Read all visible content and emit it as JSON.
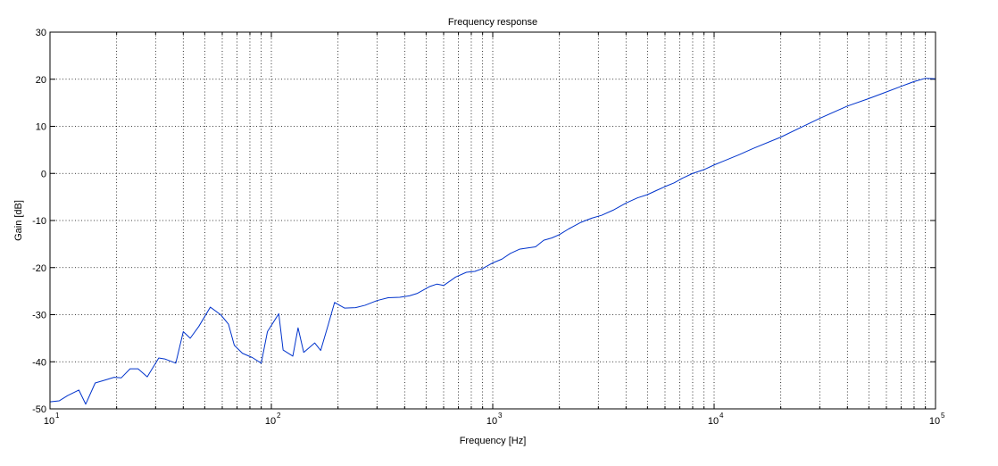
{
  "chart_data": {
    "type": "line",
    "title": "Frequency response",
    "xlabel": "Frequency [Hz]",
    "ylabel": "Gain [dB]",
    "xscale": "log",
    "xlim": [
      10,
      100000
    ],
    "ylim": [
      -50,
      30
    ],
    "grid": true,
    "grid_style": "dotted",
    "line_color": "#0033cc",
    "x_ticks": [
      {
        "value": 10,
        "base": "10",
        "exp": "1"
      },
      {
        "value": 100,
        "base": "10",
        "exp": "2"
      },
      {
        "value": 1000,
        "base": "10",
        "exp": "3"
      },
      {
        "value": 10000,
        "base": "10",
        "exp": "4"
      },
      {
        "value": 100000,
        "base": "10",
        "exp": "5"
      }
    ],
    "y_ticks": [
      30,
      20,
      10,
      0,
      -10,
      -20,
      -30,
      -40,
      -50
    ],
    "y_tick_labels": [
      "30",
      "20",
      "10",
      "0",
      "-10",
      "-20",
      "-30",
      "-40",
      "-50"
    ],
    "series": [
      {
        "x": [
          10,
          11,
          12,
          13.5,
          14.5,
          16,
          18,
          19.5,
          21,
          23,
          25,
          27.5,
          31,
          33,
          37,
          40,
          43,
          47,
          53,
          59,
          64,
          68,
          74,
          82,
          90,
          96,
          108,
          113,
          125,
          132,
          140,
          157,
          167,
          180,
          193,
          214,
          240,
          265,
          300,
          337,
          380,
          420,
          455,
          520,
          560,
          600,
          680,
          760,
          830,
          900,
          1000,
          1100,
          1200,
          1320,
          1450,
          1560,
          1700,
          1850,
          2000,
          2200,
          2500,
          2800,
          3100,
          3500,
          4000,
          4500,
          5000,
          5500,
          6000,
          6600,
          7200,
          8000,
          9000,
          10000,
          11000,
          13000,
          15000,
          20000,
          30000,
          40000,
          50000,
          60000,
          70000,
          80000,
          90000,
          100000
        ],
        "y": [
          -48.5,
          -48.3,
          -47.2,
          -46.0,
          -49.0,
          -44.5,
          -43.8,
          -43.3,
          -43.4,
          -41.5,
          -41.5,
          -43.2,
          -39.2,
          -39.4,
          -40.3,
          -33.6,
          -35.0,
          -32.5,
          -28.4,
          -30.0,
          -32.0,
          -36.5,
          -38.2,
          -39.1,
          -40.3,
          -33.6,
          -29.8,
          -37.5,
          -38.8,
          -32.8,
          -38.0,
          -36.0,
          -37.6,
          -32.4,
          -27.4,
          -28.6,
          -28.5,
          -28.0,
          -27.0,
          -26.4,
          -26.3,
          -26.0,
          -25.5,
          -24.0,
          -23.5,
          -23.8,
          -22.0,
          -21.0,
          -20.8,
          -20.2,
          -19.0,
          -18.2,
          -17.0,
          -16.1,
          -15.8,
          -15.6,
          -14.2,
          -13.7,
          -13.0,
          -11.8,
          -10.4,
          -9.5,
          -8.9,
          -7.8,
          -6.3,
          -5.2,
          -4.5,
          -3.6,
          -2.8,
          -2.0,
          -1.0,
          0.0,
          0.8,
          1.8,
          2.6,
          4.0,
          5.3,
          7.7,
          11.7,
          14.3,
          15.9,
          17.3,
          18.5,
          19.5,
          20.2,
          20.1
        ]
      }
    ]
  }
}
